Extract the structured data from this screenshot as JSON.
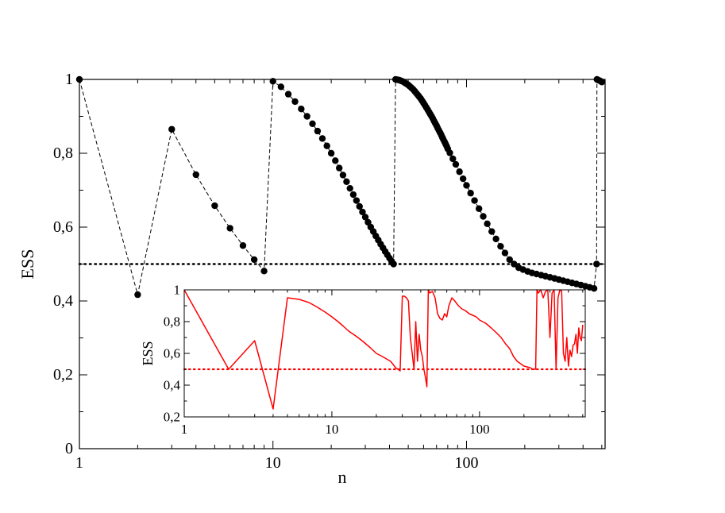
{
  "chart_data": [
    {
      "type": "scatter",
      "xlabel": "n",
      "ylabel": "ESS",
      "xscale": "log",
      "xlim": [
        1,
        520
      ],
      "ylim": [
        0,
        1
      ],
      "x_tick_labels": [
        "1",
        "10",
        "100"
      ],
      "y_tick_labels": [
        "0",
        "0,2",
        "0,4",
        "0,6",
        "0,8",
        "1"
      ],
      "threshold": 0.5,
      "series": [
        {
          "style": "markers connected by dashed line",
          "color": "#000000",
          "x": [
            1,
            2,
            3,
            4,
            5,
            6,
            7,
            8,
            9,
            10,
            11,
            12,
            13,
            14,
            15,
            16,
            17,
            18,
            19,
            20,
            21,
            22,
            23,
            24,
            25,
            26,
            27,
            28,
            29,
            30,
            31,
            32,
            33,
            34,
            35,
            36,
            37,
            38,
            39,
            40,
            41,
            42,
            43,
            44,
            45,
            46,
            47,
            48,
            49,
            50,
            51,
            52,
            53,
            54,
            55,
            56,
            57,
            58,
            59,
            60,
            61,
            62,
            63,
            64,
            65,
            66,
            67,
            68,
            69,
            70,
            71,
            72,
            73,
            74,
            75,
            76,
            77,
            78,
            79,
            80,
            82,
            85,
            88,
            92,
            96,
            100,
            105,
            110,
            116,
            122,
            128,
            135,
            142,
            150,
            158,
            167,
            176,
            186,
            196,
            207,
            218,
            230,
            243,
            256,
            270,
            285,
            300,
            316,
            333,
            351,
            370,
            390,
            411,
            433,
            456,
            470,
            472,
            475,
            480,
            490,
            500
          ],
          "y": [
            1,
            0.417,
            0.865,
            0.742,
            0.658,
            0.597,
            0.55,
            0.512,
            0.481,
            0.995,
            0.98,
            0.96,
            0.94,
            0.92,
            0.9,
            0.88,
            0.86,
            0.84,
            0.82,
            0.8,
            0.78,
            0.76,
            0.741,
            0.723,
            0.705,
            0.688,
            0.672,
            0.656,
            0.641,
            0.627,
            0.613,
            0.6,
            0.588,
            0.576,
            0.565,
            0.554,
            0.544,
            0.534,
            0.525,
            0.516,
            0.508,
            0.5,
            1,
            0.999,
            0.998,
            0.996,
            0.994,
            0.991,
            0.988,
            0.985,
            0.981,
            0.977,
            0.973,
            0.968,
            0.963,
            0.958,
            0.953,
            0.948,
            0.942,
            0.936,
            0.93,
            0.924,
            0.918,
            0.912,
            0.906,
            0.9,
            0.894,
            0.887,
            0.881,
            0.875,
            0.868,
            0.862,
            0.856,
            0.85,
            0.843,
            0.837,
            0.831,
            0.825,
            0.819,
            0.812,
            0.801,
            0.785,
            0.77,
            0.75,
            0.731,
            0.713,
            0.692,
            0.672,
            0.65,
            0.629,
            0.609,
            0.588,
            0.568,
            0.548,
            0.53,
            0.512,
            0.5,
            0.49,
            0.485,
            0.48,
            0.476,
            0.473,
            0.47,
            0.467,
            0.464,
            0.461,
            0.458,
            0.455,
            0.452,
            0.449,
            0.446,
            0.443,
            0.44,
            0.437,
            0.434,
            0.5,
            1,
            0.999,
            0.998,
            0.996,
            0.993
          ]
        }
      ]
    },
    {
      "type": "line",
      "xlabel": "",
      "ylabel": "ESS",
      "xscale": "log",
      "xlim": [
        1,
        520
      ],
      "ylim": [
        0.2,
        1
      ],
      "x_tick_labels": [
        "1",
        "10",
        "100"
      ],
      "y_tick_labels": [
        "0,2",
        "0,4",
        "0,6",
        "0,8",
        "1"
      ],
      "threshold": 0.5,
      "series": [
        {
          "style": "solid line",
          "color": "#ff0000",
          "x": [
            1,
            2,
            3,
            4,
            5,
            6,
            7,
            8,
            9,
            10,
            11,
            12,
            13,
            14,
            15,
            16,
            18,
            20,
            22,
            25,
            26,
            27,
            28,
            29,
            30,
            31,
            32,
            33,
            34,
            35,
            36,
            37,
            38,
            39,
            40,
            41,
            42,
            43,
            44,
            45,
            46,
            48,
            50,
            52,
            54,
            56,
            58,
            60,
            62,
            65,
            68,
            72,
            76,
            80,
            85,
            90,
            95,
            100,
            110,
            120,
            130,
            140,
            150,
            160,
            170,
            180,
            200,
            220,
            230,
            240,
            245,
            250,
            260,
            270,
            280,
            290,
            300,
            310,
            320,
            330,
            340,
            350,
            360,
            370,
            380,
            390,
            400,
            410,
            420,
            430,
            440,
            450,
            460,
            470,
            480,
            490,
            500
          ],
          "y": [
            1,
            0.5,
            0.68,
            0.25,
            0.95,
            0.94,
            0.92,
            0.89,
            0.86,
            0.83,
            0.8,
            0.77,
            0.74,
            0.72,
            0.7,
            0.68,
            0.64,
            0.6,
            0.58,
            0.55,
            0.53,
            0.51,
            0.5,
            0.49,
            0.96,
            0.96,
            0.95,
            0.93,
            0.7,
            0.6,
            0.5,
            0.8,
            0.55,
            0.72,
            0.62,
            0.58,
            0.5,
            0.45,
            0.39,
            1,
            0.98,
            0.99,
            0.95,
            0.85,
            0.82,
            0.81,
            0.85,
            0.83,
            0.9,
            0.95,
            0.93,
            0.9,
            0.88,
            0.87,
            0.85,
            0.84,
            0.83,
            0.81,
            0.79,
            0.76,
            0.73,
            0.7,
            0.66,
            0.63,
            0.58,
            0.55,
            0.52,
            0.51,
            0.5,
            0.5,
            1,
            0.98,
            1,
            0.95,
            0.99,
            1,
            0.7,
            0.98,
            1,
            0.5,
            0.95,
            1,
            0.99,
            0.6,
            0.55,
            0.7,
            0.52,
            0.62,
            0.58,
            0.65,
            0.66,
            0.72,
            0.6,
            0.76,
            0.7,
            0.68,
            0.78
          ]
        }
      ]
    }
  ]
}
